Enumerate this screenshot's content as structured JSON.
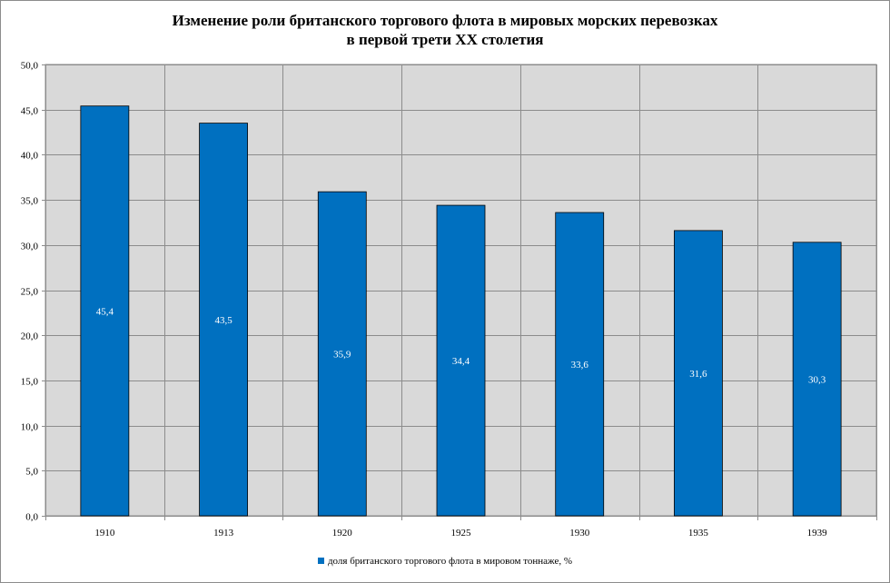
{
  "chart_data": {
    "type": "bar",
    "title": [
      "Изменение роли британского торгового флота в мировых морских перевозках",
      "в первой трети XX столетия"
    ],
    "categories": [
      "1910",
      "1913",
      "1920",
      "1925",
      "1930",
      "1935",
      "1939"
    ],
    "series": [
      {
        "name": "доля британского торгового флота в мировом тоннаже, %",
        "values": [
          45.4,
          43.5,
          35.9,
          34.4,
          33.6,
          31.6,
          30.3
        ],
        "labels": [
          "45,4",
          "43,5",
          "35,9",
          "34,4",
          "33,6",
          "31,6",
          "30,3"
        ]
      }
    ],
    "ylim": [
      0,
      50
    ],
    "yticks": [
      "0,0",
      "5,0",
      "10,0",
      "15,0",
      "20,0",
      "25,0",
      "30,0",
      "35,0",
      "40,0",
      "45,0",
      "50,0"
    ],
    "xlabel": "",
    "ylabel": "",
    "grid": true,
    "legend_position": "bottom"
  },
  "colors": {
    "bar": "#0070c0",
    "plot_background": "#d9d9d9",
    "grid": "#8c8c8c"
  }
}
